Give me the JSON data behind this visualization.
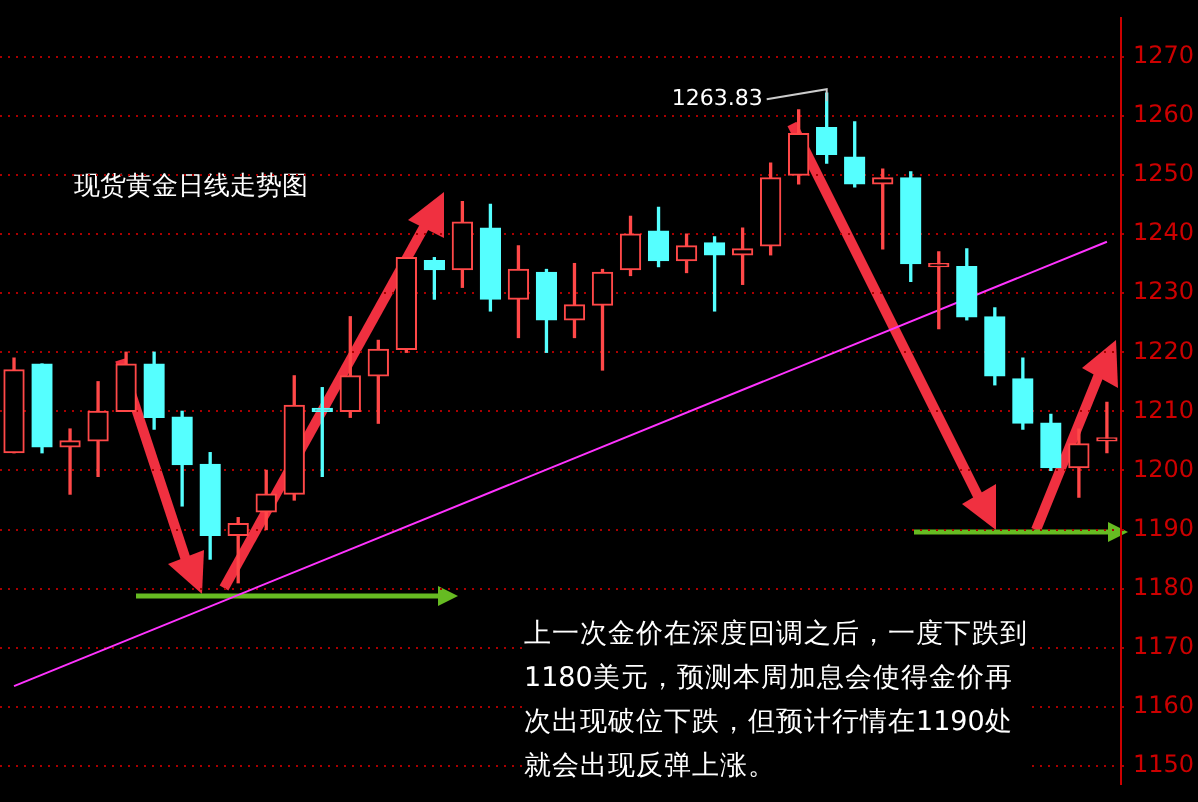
{
  "chart_data": {
    "type": "candlestick",
    "title": "现货黄金日线走势图",
    "categories": [
      null,
      null,
      null,
      null,
      null,
      null,
      null,
      null,
      null,
      null,
      null,
      null,
      null,
      null,
      null,
      null,
      null,
      null,
      null,
      null,
      null,
      null,
      null,
      null,
      null,
      null,
      null,
      null,
      null,
      null,
      null,
      null,
      null,
      null,
      null,
      null,
      null,
      null,
      null,
      null
    ],
    "ohlc": [
      [
        1203,
        1219,
        1203,
        1217
      ],
      [
        1218,
        1218,
        1203,
        1204
      ],
      [
        1204,
        1207,
        1196,
        1205
      ],
      [
        1205,
        1215,
        1199,
        1210
      ],
      [
        1210,
        1220,
        1210,
        1218
      ],
      [
        1218,
        1220,
        1207,
        1209
      ],
      [
        1209,
        1210,
        1194,
        1201
      ],
      [
        1201,
        1203,
        1185,
        1189
      ],
      [
        1189,
        1192,
        1181,
        1191
      ],
      [
        1193,
        1200,
        1190,
        1196
      ],
      [
        1196,
        1216,
        1195,
        1211
      ],
      [
        1210.5,
        1214,
        1199,
        1210
      ],
      [
        1210,
        1226,
        1209,
        1216
      ],
      [
        1216,
        1222,
        1208,
        1220.5
      ],
      [
        1220.5,
        1236,
        1220,
        1236
      ],
      [
        1235.5,
        1236,
        1229,
        1234
      ],
      [
        1234,
        1245.5,
        1231,
        1242
      ],
      [
        1241,
        1245,
        1227,
        1229
      ],
      [
        1229,
        1238,
        1222.5,
        1234
      ],
      [
        1233.5,
        1234,
        1220,
        1225.5
      ],
      [
        1225.5,
        1235,
        1222.5,
        1228
      ],
      [
        1228,
        1234,
        1217,
        1233.5
      ],
      [
        1234,
        1243,
        1233,
        1240
      ],
      [
        1240.5,
        1244.5,
        1234.5,
        1235.5
      ],
      [
        1235.5,
        1240,
        1233.5,
        1238
      ],
      [
        1238.5,
        1239.5,
        1227,
        1236.5
      ],
      [
        1236.5,
        1241,
        1231.5,
        1237.5
      ],
      [
        1238,
        1252,
        1236.5,
        1249.5
      ],
      [
        1250,
        1261,
        1248.5,
        1257
      ],
      [
        1258,
        1263.83,
        1252,
        1253.5
      ],
      [
        1253,
        1259,
        1248,
        1248.5
      ],
      [
        1248.5,
        1251,
        1237.5,
        1249.5
      ],
      [
        1249.5,
        1250.5,
        1232,
        1235
      ],
      [
        1234.5,
        1237,
        1224,
        1235
      ],
      [
        1234.5,
        1237.5,
        1225.5,
        1226
      ],
      [
        1226,
        1227.5,
        1214.5,
        1216
      ],
      [
        1215.5,
        1219,
        1207,
        1208
      ],
      [
        1208,
        1209.5,
        1200,
        1200.5
      ],
      [
        1200.5,
        1207,
        1195.5,
        1204.5
      ],
      [
        1205,
        1211.5,
        1203,
        1205.5
      ]
    ],
    "colors": [
      "#ff4848",
      "#55ffff",
      "#ff4848",
      "#ff4848",
      "#ff4848",
      "#55ffff",
      "#55ffff",
      "#55ffff",
      "#ff4848",
      "#ff4848",
      "#ff4848",
      "#55ffff",
      "#ff4848",
      "#ff4848",
      "#ff4848",
      "#55ffff",
      "#ff4848",
      "#55ffff",
      "#ff4848",
      "#55ffff",
      "#ff4848",
      "#ff4848",
      "#ff4848",
      "#55ffff",
      "#ff4848",
      "#55ffff",
      "#ff4848",
      "#ff4848",
      "#ff4848",
      "#55ffff",
      "#55ffff",
      "#ff4848",
      "#55ffff",
      "#ff4848",
      "#55ffff",
      "#55ffff",
      "#55ffff",
      "#55ffff",
      "#ff4848",
      "#ff4848"
    ],
    "series": [
      {
        "type": "line",
        "color": "#ff33ff",
        "values": [
          1163.5,
          null,
          null,
          null,
          null,
          null,
          null,
          null,
          null,
          null,
          null,
          null,
          null,
          null,
          null,
          null,
          null,
          null,
          null,
          null,
          null,
          null,
          null,
          null,
          null,
          null,
          null,
          null,
          null,
          null,
          null,
          null,
          null,
          null,
          null,
          null,
          null,
          null,
          null,
          1238.7
        ]
      }
    ],
    "ylim": [
      1147,
      1276.5
    ],
    "yticks": [
      1150,
      1160,
      1170,
      1180,
      1190,
      1200,
      1210,
      1220,
      1230,
      1240,
      1250,
      1260,
      1270
    ],
    "grid": "y",
    "tick_labels": "y",
    "legend": false,
    "annotations": [
      "1263.83",
      "上一次金价在深度回调之后，一度下跌到1180美元，预测本周加息会使得金价再次出现破位下跌，但预计行情在1190处就会出现反弹上涨。"
    ]
  }
}
